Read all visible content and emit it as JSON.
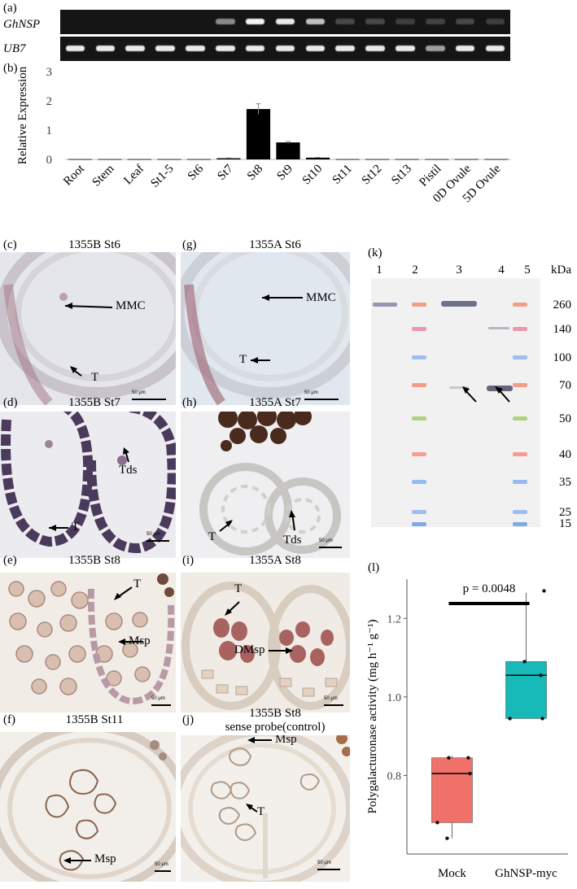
{
  "figure": {
    "panel_labels": {
      "a": "(a)",
      "b": "(b)",
      "c": "(c)",
      "d": "(d)",
      "e": "(e)",
      "f": "(f)",
      "g": "(g)",
      "h": "(h)",
      "i": "(i)",
      "j": "(j)",
      "k": "(k)",
      "l": "(l)"
    },
    "gel": {
      "gene1": "GhNSP",
      "gene2": "UB7",
      "gene1_band_intensity": [
        0,
        0,
        0,
        0,
        0,
        0.45,
        0.95,
        0.9,
        0.7,
        0.15,
        0.15,
        0.1,
        0.12,
        0.15,
        0.1
      ],
      "gene2_band_intensity": [
        0.9,
        0.9,
        0.9,
        0.9,
        0.9,
        0.9,
        0.9,
        0.9,
        0.9,
        0.9,
        0.9,
        0.9,
        0.55,
        0.9,
        0.9
      ]
    },
    "micrographs": {
      "c": {
        "title": "1355B St6",
        "arrows": [
          "MMC",
          "T"
        ],
        "scale": "50 μm"
      },
      "d": {
        "title": "1355B St7",
        "arrows": [
          "Tds",
          "T"
        ],
        "scale": "50 μm"
      },
      "e": {
        "title": "1355B St8",
        "arrows": [
          "T",
          "Msp"
        ],
        "scale": "50 μm"
      },
      "f": {
        "title": "1355B St11",
        "arrows": [
          "Msp"
        ],
        "scale": "50 μm"
      },
      "g": {
        "title": "1355A St6",
        "arrows": [
          "MMC",
          "T"
        ],
        "scale": "50 μm"
      },
      "h": {
        "title": "1355A St7",
        "arrows": [
          "T",
          "Tds"
        ],
        "scale": "50 μm"
      },
      "i": {
        "title": "1355A St8",
        "arrows": [
          "T",
          "DMsp"
        ],
        "scale": "50 μm"
      },
      "j": {
        "title": "1355B St8",
        "subtitle": "sense probe(control)",
        "arrows": [
          "Msp",
          "T"
        ],
        "scale": "50 μm"
      }
    },
    "western": {
      "lanes": [
        "1",
        "2",
        "3",
        "4",
        "5"
      ],
      "unit": "kDa",
      "markers": [
        "260",
        "140",
        "100",
        "70",
        "50",
        "40",
        "35",
        "25",
        "15"
      ]
    }
  },
  "chart_data": [
    {
      "type": "bar",
      "panel": "b",
      "categories": [
        "Root",
        "Stem",
        "Leaf",
        "St1-5",
        "St6",
        "St7",
        "St8",
        "St9",
        "St10",
        "St11",
        "St12",
        "St13",
        "Pistil",
        "0D Ovule",
        "5D Ovule"
      ],
      "values": [
        0.01,
        0.01,
        0.01,
        0.01,
        0.01,
        0.04,
        1.72,
        0.58,
        0.06,
        0.01,
        0.01,
        0.01,
        0.01,
        0.01,
        0.01
      ],
      "errors": [
        0,
        0,
        0,
        0,
        0,
        0.01,
        0.18,
        0.03,
        0.01,
        0,
        0,
        0,
        0,
        0,
        0
      ],
      "xlabel": "",
      "ylabel": "Relative Expression",
      "ylim": [
        0,
        3
      ],
      "yticks": [
        "0",
        "1",
        "2",
        "3"
      ],
      "grid": false
    },
    {
      "type": "box",
      "panel": "l",
      "categories": [
        "Mock",
        "GhNSP-myc"
      ],
      "colors": [
        "#f0706a",
        "#17b9b9"
      ],
      "boxes": [
        {
          "q1": 0.68,
          "median": 0.805,
          "q3": 0.845,
          "min": 0.64,
          "max": 0.85,
          "points": [
            0.64,
            0.68,
            0.805,
            0.845,
            0.845
          ]
        },
        {
          "q1": 0.945,
          "median": 1.055,
          "q3": 1.09,
          "min": 0.945,
          "max": 1.265,
          "points": [
            0.945,
            0.945,
            1.055,
            1.09,
            1.27
          ]
        }
      ],
      "ylabel": "Polygalacturonase activity (mg h⁻¹ g⁻¹)",
      "ylim": [
        0.6,
        1.3
      ],
      "yticks": [
        "0.8",
        "1.0",
        "1.2"
      ],
      "annotation": "p = 0.0048"
    }
  ]
}
